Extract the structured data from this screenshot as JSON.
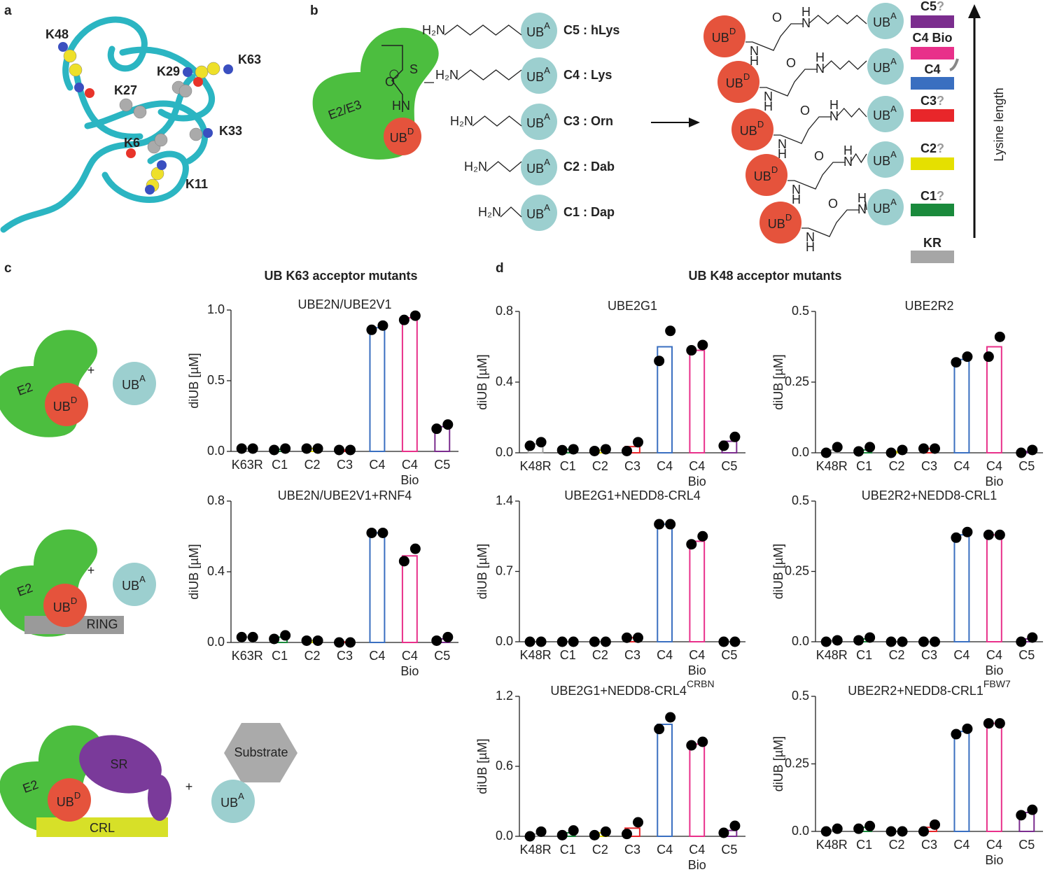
{
  "panel_labels": [
    "a",
    "b",
    "c",
    "d"
  ],
  "panel_a": {
    "residues": [
      "K48",
      "K63",
      "K29",
      "K27",
      "K33",
      "K6",
      "K11"
    ]
  },
  "panel_b": {
    "enzyme": "E2/E3",
    "ub_acceptor": {
      "text": "UB",
      "sup": "A"
    },
    "ub_donor": {
      "text": "UB",
      "sup": "D"
    },
    "atoms": {
      "sulfur": "S",
      "oxygen": "O",
      "nitrogen": "N",
      "hydrogen": "H",
      "amine": "HN",
      "amino": "H₂N"
    },
    "linkers": [
      "C5 : hLys",
      "C4 : Lys",
      "C3 : Orn",
      "C2 : Dab",
      "C1 : Dap"
    ],
    "legend": [
      {
        "label": "C5",
        "mark": "?",
        "color": "#7b2d8e"
      },
      {
        "label": "C4 Bio",
        "color": "#e8308a"
      },
      {
        "label": "C4",
        "color": "#3a6fc0"
      },
      {
        "label": "C3",
        "mark": "?",
        "color": "#e8262a"
      },
      {
        "label": "C2",
        "mark": "?",
        "color": "#e5e000"
      },
      {
        "label": "C1",
        "mark": "?",
        "color": "#1a8a3c"
      },
      {
        "label": "KR",
        "color": "#a6a6a6"
      }
    ],
    "axis_label": "Lysine length"
  },
  "panel_c": {
    "title": "UB K63 acceptor mutants",
    "plus": "+",
    "e2": "E2",
    "ring": "RING",
    "sr": "SR",
    "crl": "CRL",
    "substrate": "Substrate"
  },
  "panel_d": {
    "title": "UB K48 acceptor mutants"
  },
  "chart_data": [
    {
      "type": "bar",
      "title": "UBE2N/UBE2V1",
      "y_label": "diUB [µM]",
      "categories": [
        "K63R",
        "C1",
        "C2",
        "C3",
        "C4",
        "C4 Bio",
        "C5"
      ],
      "colors": [
        "#9e9e9e",
        "#1a8a3c",
        "#e5e000",
        "#e8262a",
        "#3a6fc0",
        "#e8308a",
        "#7b2d8e"
      ],
      "values": [
        0.02,
        0.015,
        0.02,
        0.01,
        0.875,
        0.945,
        0.175
      ],
      "points": [
        [
          0.02,
          0.02
        ],
        [
          0.01,
          0.02
        ],
        [
          0.02,
          0.02
        ],
        [
          0.01,
          0.01
        ],
        [
          0.86,
          0.89
        ],
        [
          0.93,
          0.96
        ],
        [
          0.16,
          0.19
        ]
      ],
      "ylim": [
        0,
        1.0
      ],
      "yticks": [
        {
          "value": 0,
          "label": "0.0"
        },
        0.5,
        {
          "value": 1,
          "label": "1.0"
        }
      ]
    },
    {
      "type": "bar",
      "title": "UBE2N/UBE2V1+RNF4",
      "y_label": "diUB [µM]",
      "categories": [
        "K63R",
        "C1",
        "C2",
        "C3",
        "C4",
        "C4 Bio",
        "C5"
      ],
      "colors": [
        "#9e9e9e",
        "#1a8a3c",
        "#e5e000",
        "#e8262a",
        "#3a6fc0",
        "#e8308a",
        "#7b2d8e"
      ],
      "values": [
        0.03,
        0.03,
        0.01,
        0.003,
        0.62,
        0.49,
        0.02
      ],
      "points": [
        [
          0.03,
          0.03
        ],
        [
          0.02,
          0.04
        ],
        [
          0.01,
          0.01
        ],
        [
          0,
          0
        ],
        [
          0.62,
          0.62
        ],
        [
          0.46,
          0.53
        ],
        [
          0.01,
          0.03
        ]
      ],
      "ylim": [
        0,
        0.8
      ],
      "yticks": [
        {
          "value": 0,
          "label": "0.0"
        },
        0.4,
        0.8
      ]
    },
    {
      "type": "bar",
      "title": "UBE2G1",
      "y_label": "diUB [µM]",
      "categories": [
        "K48R",
        "C1",
        "C2",
        "C3",
        "C4",
        "C4 Bio",
        "C5"
      ],
      "colors": [
        "#9e9e9e",
        "#1a8a3c",
        "#e5e000",
        "#e8262a",
        "#3a6fc0",
        "#e8308a",
        "#7b2d8e"
      ],
      "values": [
        0.05,
        0.02,
        0.015,
        0.035,
        0.6,
        0.58,
        0.065
      ],
      "points": [
        [
          0.04,
          0.06
        ],
        [
          0.015,
          0.02
        ],
        [
          0.01,
          0.02
        ],
        [
          0.01,
          0.06
        ],
        [
          0.52,
          0.69
        ],
        [
          0.58,
          0.61
        ],
        [
          0.04,
          0.09
        ]
      ],
      "ylim": [
        0,
        0.8
      ],
      "yticks": [
        {
          "value": 0,
          "label": "0.0"
        },
        0.4,
        0.8
      ]
    },
    {
      "type": "bar",
      "title": "UBE2R2",
      "y_label": "diUB [µM]",
      "categories": [
        "K48R",
        "C1",
        "C2",
        "C3",
        "C4",
        "C4 Bio",
        "C5"
      ],
      "colors": [
        "#9e9e9e",
        "#1a8a3c",
        "#e5e000",
        "#e8262a",
        "#3a6fc0",
        "#e8308a",
        "#7b2d8e"
      ],
      "values": [
        0.01,
        0.01,
        0.005,
        0.015,
        0.33,
        0.375,
        0.005
      ],
      "points": [
        [
          0,
          0.02
        ],
        [
          0.005,
          0.02
        ],
        [
          0,
          0.01
        ],
        [
          0.015,
          0.015
        ],
        [
          0.32,
          0.34
        ],
        [
          0.34,
          0.41
        ],
        [
          0,
          0.01
        ]
      ],
      "ylim": [
        0,
        0.5
      ],
      "yticks": [
        {
          "value": 0,
          "label": "0.0"
        },
        0.25,
        0.5
      ]
    },
    {
      "type": "bar",
      "title": "UBE2G1+NEDD8-CRL4",
      "y_label": "diUB [µM]",
      "categories": [
        "K48R",
        "C1",
        "C2",
        "C3",
        "C4",
        "C4 Bio",
        "C5"
      ],
      "colors": [
        "#9e9e9e",
        "#1a8a3c",
        "#e5e000",
        "#e8262a",
        "#3a6fc0",
        "#e8308a",
        "#7b2d8e"
      ],
      "values": [
        0,
        0,
        0,
        0.04,
        1.17,
        1.0,
        0
      ],
      "points": [
        [
          0,
          0
        ],
        [
          0,
          0
        ],
        [
          0,
          0
        ],
        [
          0.04,
          0.04
        ],
        [
          1.17,
          1.17
        ],
        [
          0.97,
          1.05
        ],
        [
          0,
          0
        ]
      ],
      "ylim": [
        0,
        1.4
      ],
      "yticks": [
        {
          "value": 0,
          "label": "0.0"
        },
        0.7,
        1.4
      ]
    },
    {
      "type": "bar",
      "title": "UBE2R2+NEDD8-CRL1",
      "y_label": "diUB [µM]",
      "categories": [
        "K48R",
        "C1",
        "C2",
        "C3",
        "C4",
        "C4 Bio",
        "C5"
      ],
      "colors": [
        "#9e9e9e",
        "#1a8a3c",
        "#e5e000",
        "#e8262a",
        "#3a6fc0",
        "#e8308a",
        "#7b2d8e"
      ],
      "values": [
        0.005,
        0.01,
        0,
        0,
        0.38,
        0.38,
        0.01
      ],
      "points": [
        [
          0,
          0.005
        ],
        [
          0.005,
          0.015
        ],
        [
          0,
          0
        ],
        [
          0,
          0
        ],
        [
          0.37,
          0.39
        ],
        [
          0.38,
          0.38
        ],
        [
          0,
          0.015
        ]
      ],
      "ylim": [
        0,
        0.5
      ],
      "yticks": [
        {
          "value": 0,
          "label": "0.0"
        },
        0.25,
        0.5
      ]
    },
    {
      "type": "bar",
      "title": "UBE2G1+NEDD8-CRL4",
      "title_sup": "CRBN",
      "y_label": "diUB [µM]",
      "categories": [
        "K48R",
        "C1",
        "C2",
        "C3",
        "C4",
        "C4 Bio",
        "C5"
      ],
      "colors": [
        "#9e9e9e",
        "#1a8a3c",
        "#e5e000",
        "#e8262a",
        "#3a6fc0",
        "#e8308a",
        "#7b2d8e"
      ],
      "values": [
        0.02,
        0.03,
        0.03,
        0.07,
        0.96,
        0.79,
        0.05
      ],
      "points": [
        [
          0,
          0.04
        ],
        [
          0.01,
          0.05
        ],
        [
          0.01,
          0.04
        ],
        [
          0.02,
          0.12
        ],
        [
          0.92,
          1.02
        ],
        [
          0.78,
          0.81
        ],
        [
          0.03,
          0.09
        ]
      ],
      "ylim": [
        0,
        1.2
      ],
      "yticks": [
        {
          "value": 0,
          "label": "0.0"
        },
        0.6,
        1.2
      ]
    },
    {
      "type": "bar",
      "title": "UBE2R2+NEDD8-CRL1",
      "title_sup": "FBW7",
      "y_label": "diUB [µM]",
      "categories": [
        "K48R",
        "C1",
        "C2",
        "C3",
        "C4",
        "C4 Bio",
        "C5"
      ],
      "colors": [
        "#9e9e9e",
        "#1a8a3c",
        "#e5e000",
        "#e8262a",
        "#3a6fc0",
        "#e8308a",
        "#7b2d8e"
      ],
      "values": [
        0.005,
        0.015,
        0,
        0.015,
        0.37,
        0.4,
        0.07
      ],
      "points": [
        [
          0,
          0.01
        ],
        [
          0.01,
          0.02
        ],
        [
          0,
          0
        ],
        [
          0,
          0.025
        ],
        [
          0.36,
          0.38
        ],
        [
          0.4,
          0.4
        ],
        [
          0.06,
          0.08
        ]
      ],
      "ylim": [
        0,
        0.5
      ],
      "yticks": [
        {
          "value": 0,
          "label": "0.0"
        },
        0.25,
        0.5
      ]
    }
  ]
}
